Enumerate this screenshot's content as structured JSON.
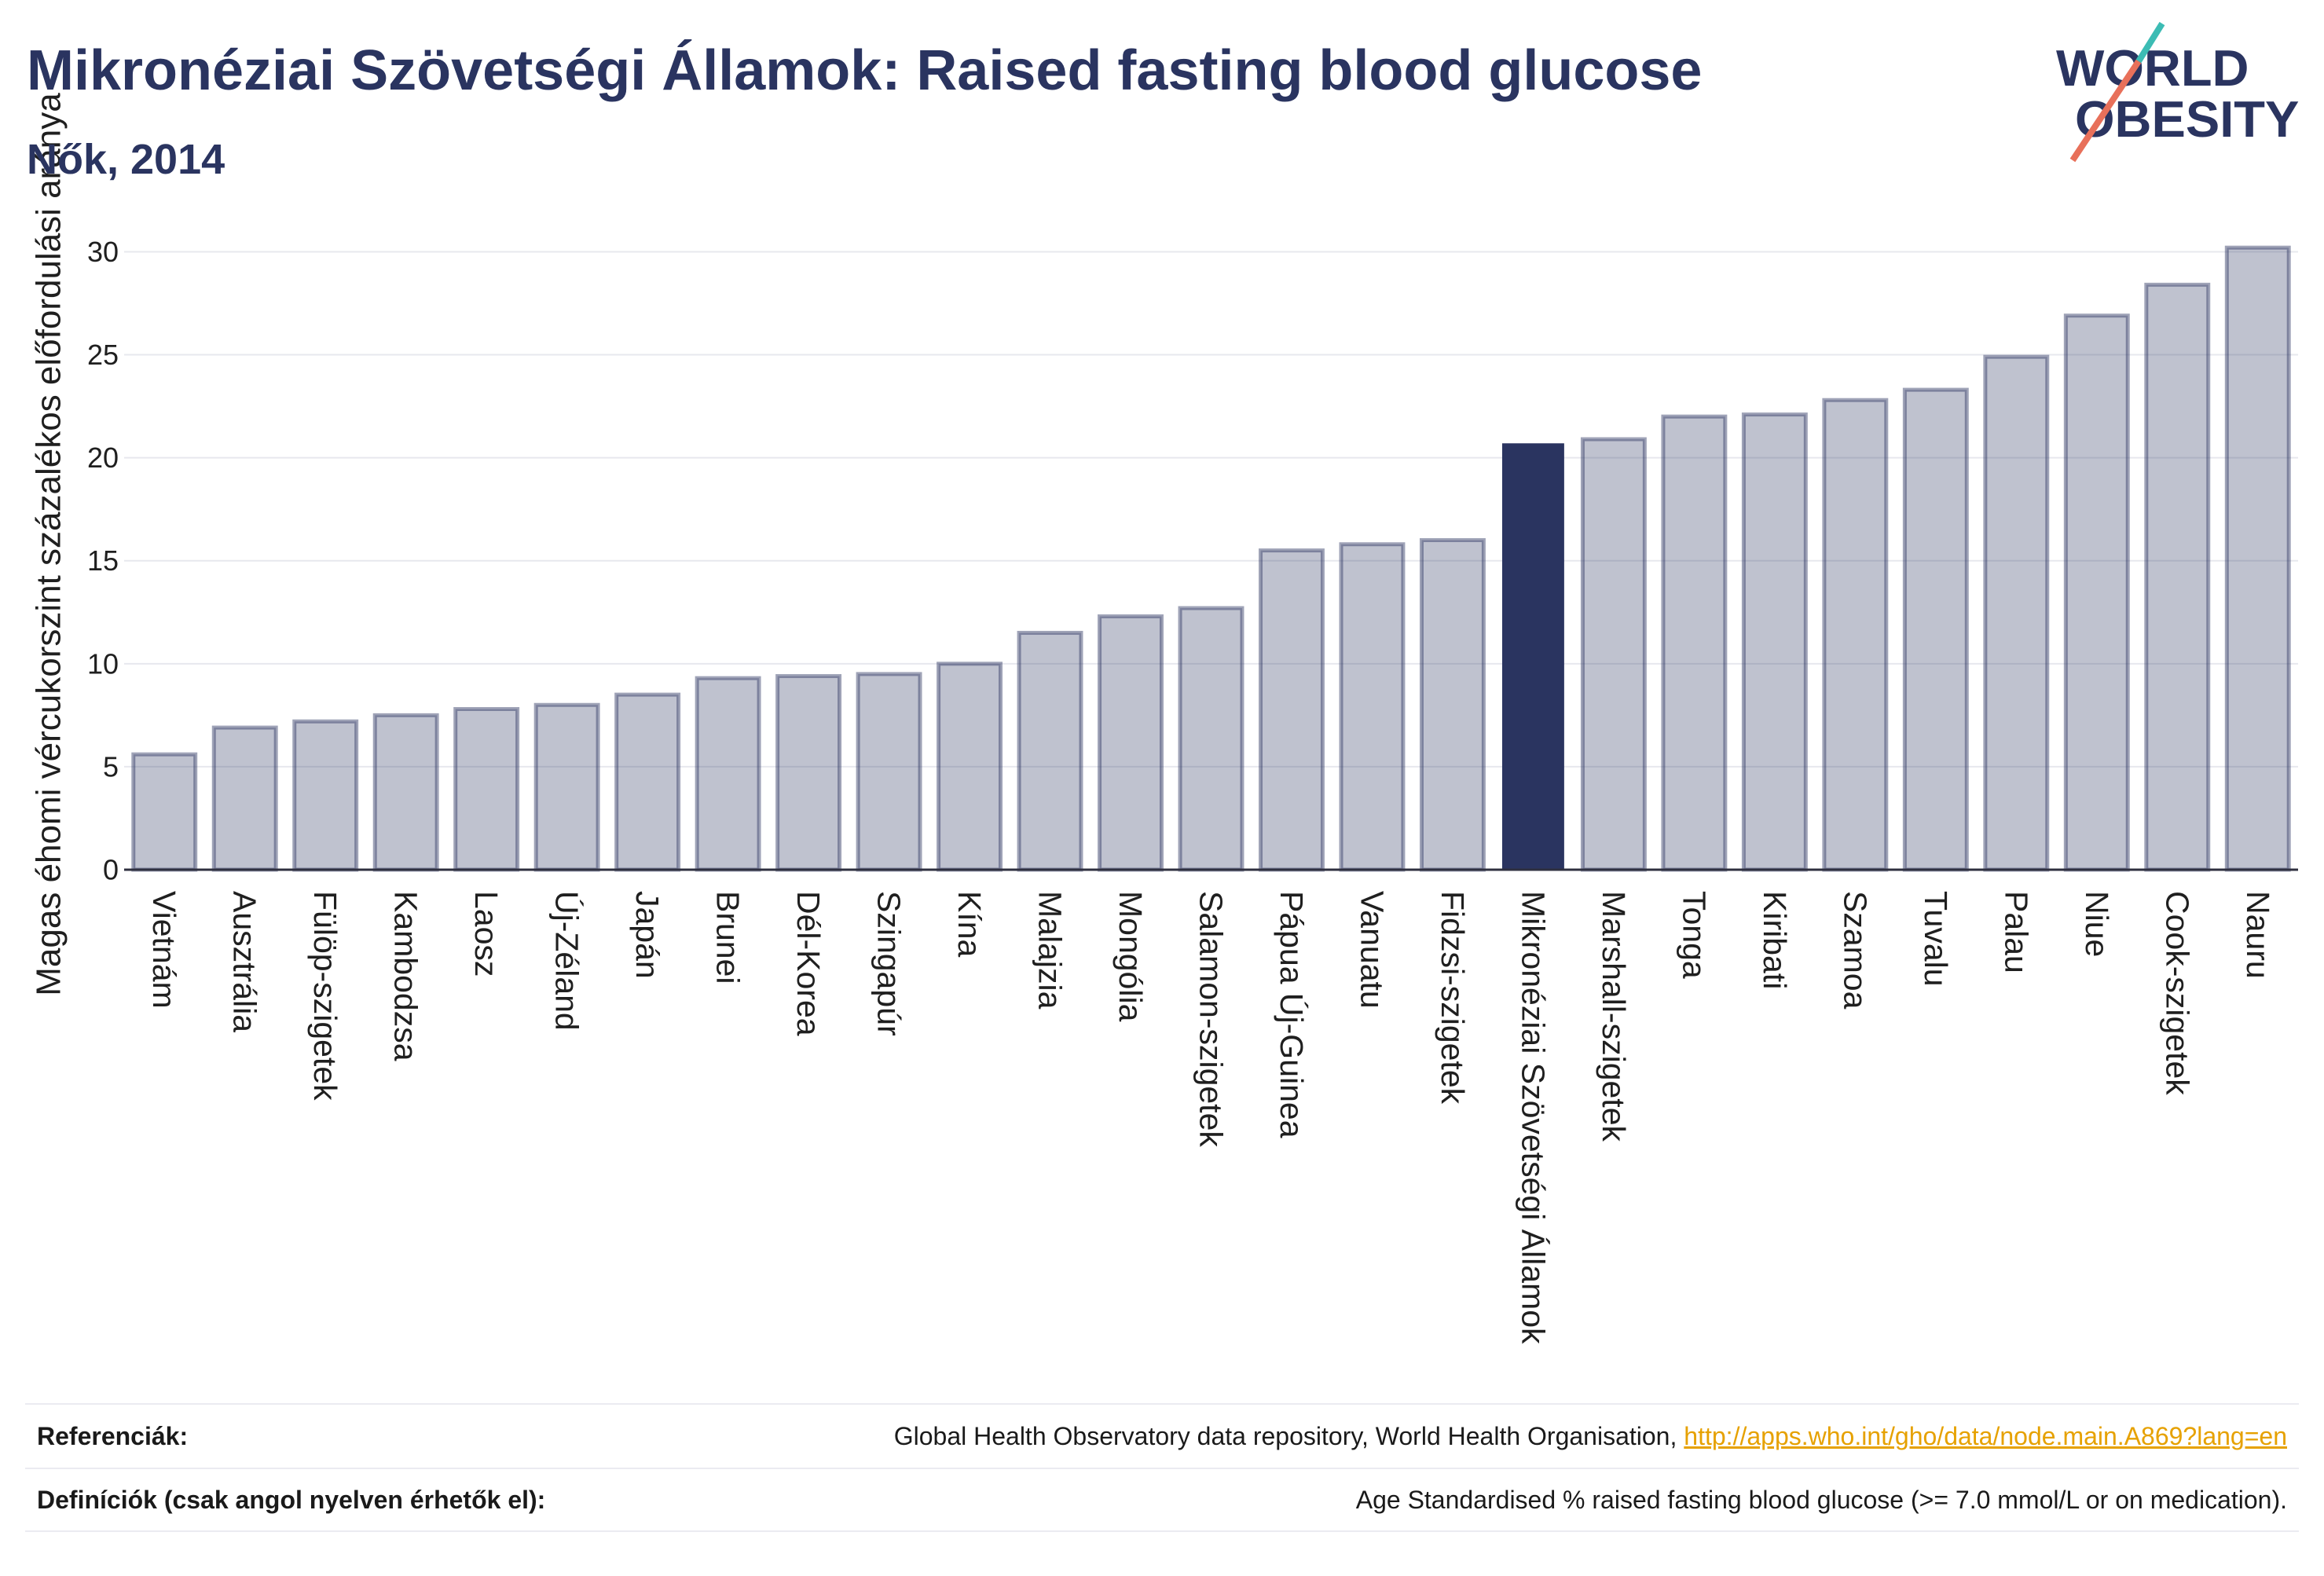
{
  "chart_data": {
    "type": "bar",
    "title": "Mikronéziai Szövetségi Államok: Raised fasting blood glucose",
    "subtitle": "Nők, 2014",
    "ylabel": "Magas éhomi vércukorszint százalékos előfordulási aránya",
    "categories": [
      "Vietnám",
      "Ausztrália",
      "Fülöp-szigetek",
      "Kambodzsa",
      "Laosz",
      "Új-Zéland",
      "Japán",
      "Brunei",
      "Dél-Korea",
      "Szingapúr",
      "Kína",
      "Malajzia",
      "Mongólia",
      "Salamon-szigetek",
      "Pápua Új-Guinea",
      "Vanuatu",
      "Fidzsi-szigetek",
      "Mikronéziai Szövetségi Államok",
      "Marshall-szigetek",
      "Tonga",
      "Kiribati",
      "Szamoa",
      "Tuvalu",
      "Palau",
      "Niue",
      "Cook-szigetek",
      "Nauru"
    ],
    "values": [
      5.6,
      6.9,
      7.2,
      7.5,
      7.8,
      8.0,
      8.5,
      9.3,
      9.4,
      9.5,
      10.0,
      11.5,
      12.3,
      12.7,
      15.5,
      15.8,
      16.0,
      20.7,
      20.9,
      22.0,
      22.1,
      22.8,
      23.3,
      24.9,
      26.9,
      28.4,
      30.2
    ],
    "highlight_index": 17,
    "ylim": [
      0,
      32
    ],
    "yticks": [
      0,
      5,
      10,
      15,
      20,
      25,
      30
    ],
    "grid": true,
    "colors": {
      "bar": "#2a3460",
      "highlight": "#2a3460",
      "grid": "#e7e8ee",
      "axis": "#2f3040"
    }
  },
  "logo": {
    "line1": "WORLD",
    "line2": "OBESITY",
    "colors": {
      "text": "#2a3460",
      "slash_top": "#3cbcb4",
      "slash_bottom": "#e8705a"
    }
  },
  "footer": {
    "references_label": "Referenciák:",
    "references_text": "Global Health Observatory data repository, World Health Organisation,",
    "references_link": "http://apps.who.int/gho/data/node.main.A869?lang=en",
    "definitions_label": "Definíciók (csak angol nyelven érhetők el):",
    "definitions_text": "Age Standardised % raised fasting blood glucose (>= 7.0 mmol/L or on medication)."
  }
}
